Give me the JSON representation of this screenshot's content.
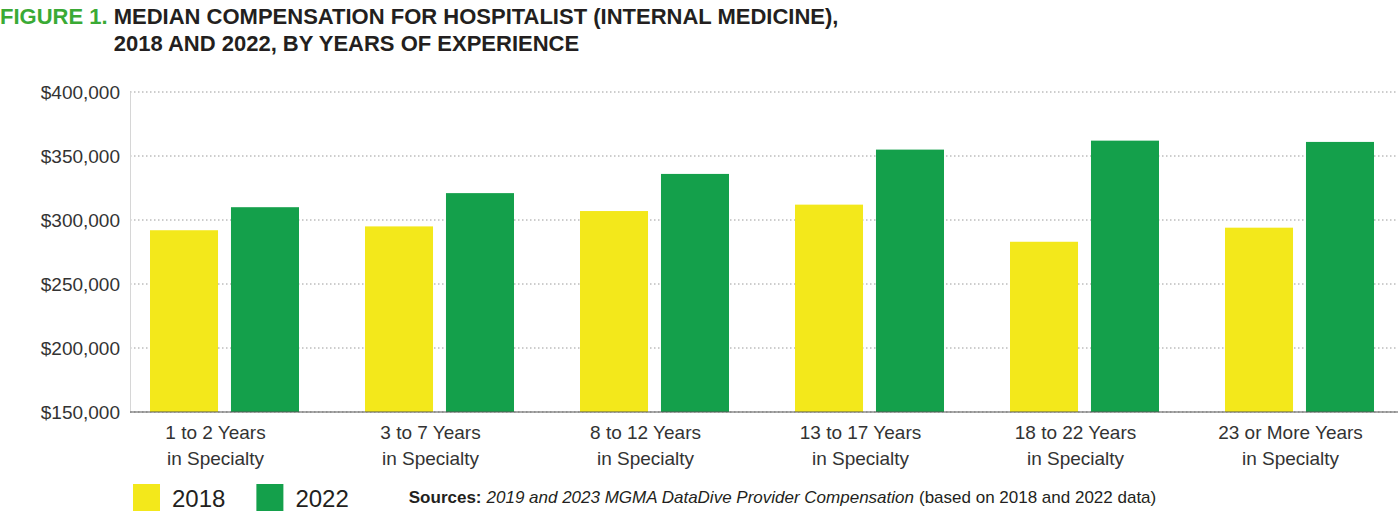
{
  "chart_data": {
    "type": "bar",
    "title": "FIGURE 1. MEDIAN COMPENSATION FOR HOSPITALIST (INTERNAL MEDICINE), 2018 AND 2022, BY YEARS OF EXPERIENCE",
    "categories": [
      "1 to 2 Years\nin Specialty",
      "3 to 7 Years\nin Specialty",
      "8 to 12 Years\nin Specialty",
      "13 to 17 Years\nin Specialty",
      "18 to 22 Years\nin Specialty",
      "23 or More Years\nin Specialty"
    ],
    "series": [
      {
        "name": "2018",
        "color": "#f3e81b",
        "values": [
          292000,
          295000,
          307000,
          312000,
          283000,
          294000
        ]
      },
      {
        "name": "2022",
        "color": "#14a04b",
        "values": [
          310000,
          321000,
          336000,
          355000,
          362000,
          361000
        ]
      }
    ],
    "ylim": [
      150000,
      400000
    ],
    "yticks": [
      {
        "value": 150000,
        "label": "$150,000"
      },
      {
        "value": 200000,
        "label": "$200,000"
      },
      {
        "value": 250000,
        "label": "$250,000"
      },
      {
        "value": 300000,
        "label": "$300,000"
      },
      {
        "value": 350000,
        "label": "$350,000"
      },
      {
        "value": 400000,
        "label": "$400,000"
      }
    ],
    "grid": true,
    "legend": "bottom left",
    "annotations": [
      "Sources:",
      "2019 and 2023 MGMA DataDive Provider Compensation",
      "(based on 2018 and 2022 data)"
    ]
  }
}
